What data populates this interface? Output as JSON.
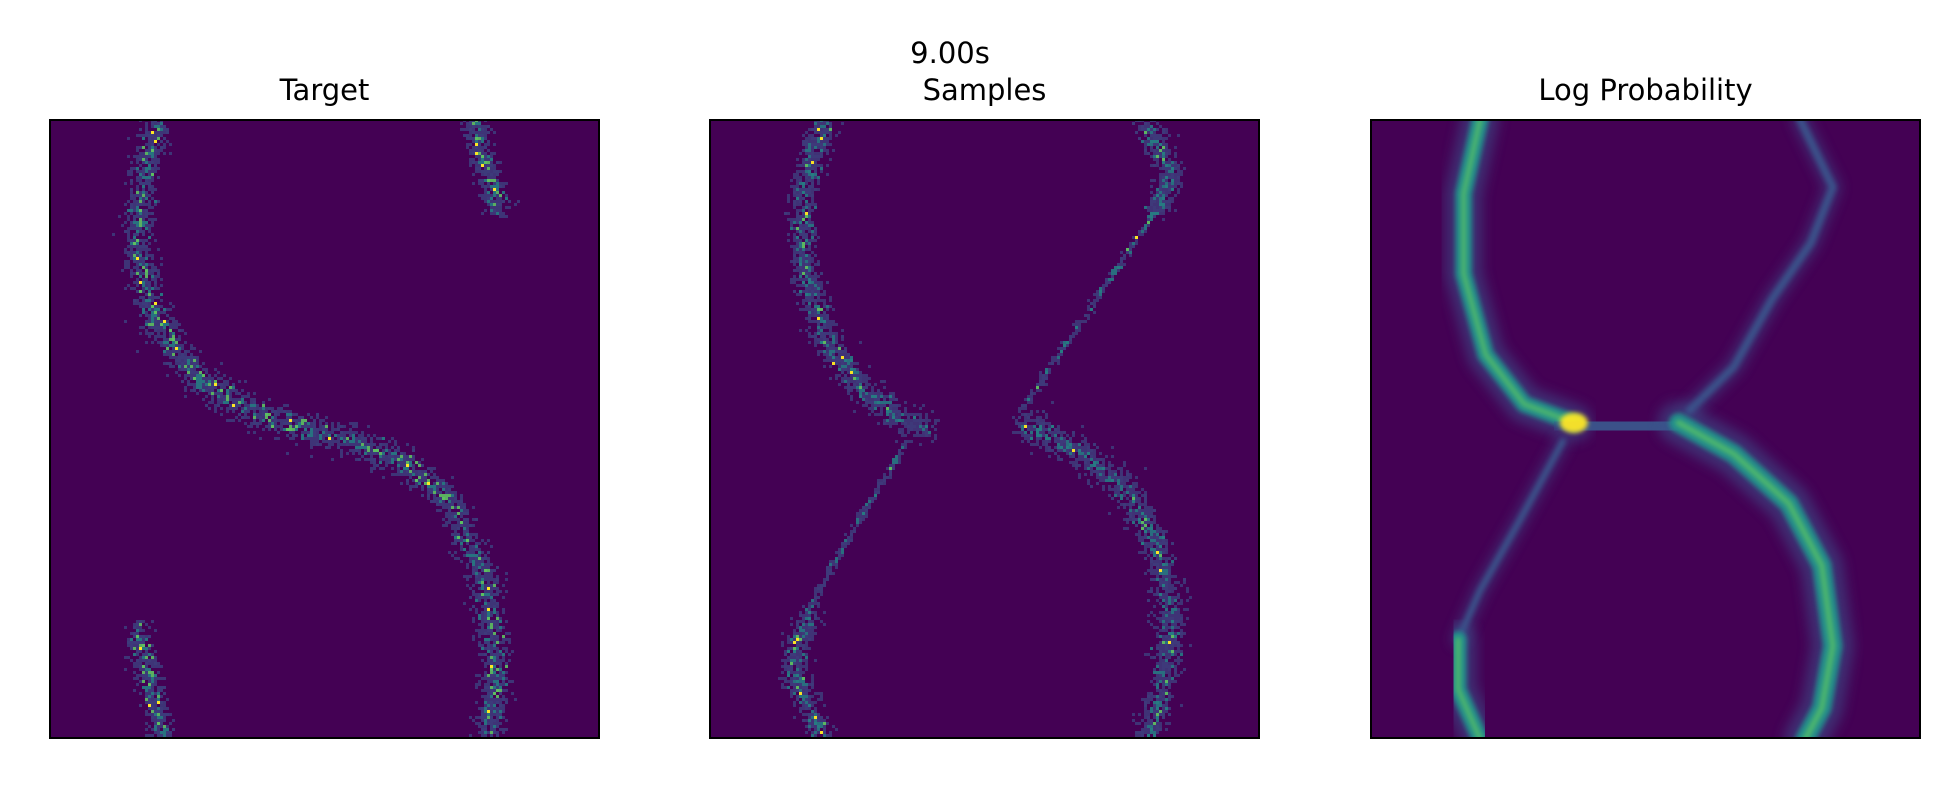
{
  "figure": {
    "suptitle": "9.00s"
  },
  "colormap": {
    "name": "viridis",
    "background": "#440154",
    "low": "#3b528b",
    "mid": "#21918c",
    "high": "#5ec962",
    "peak": "#fde725"
  },
  "chart_data": [
    {
      "type": "heatmap",
      "title": "Target",
      "description": "2D histogram of target samples forming an S-shaped curve",
      "xlim": [
        0,
        1
      ],
      "ylim": [
        0,
        1
      ],
      "grid": false,
      "legend": "none",
      "style": "histogram",
      "curves": [
        {
          "points": [
            [
              0.2,
              1.0
            ],
            [
              0.17,
              0.9
            ],
            [
              0.16,
              0.8
            ],
            [
              0.19,
              0.68
            ],
            [
              0.27,
              0.58
            ],
            [
              0.38,
              0.52
            ],
            [
              0.52,
              0.49
            ],
            [
              0.64,
              0.45
            ],
            [
              0.73,
              0.38
            ],
            [
              0.79,
              0.26
            ],
            [
              0.81,
              0.12
            ],
            [
              0.8,
              0.0
            ]
          ],
          "width": 0.03,
          "intensity": 0.85
        },
        {
          "points": [
            [
              0.77,
              1.0
            ],
            [
              0.79,
              0.93
            ],
            [
              0.82,
              0.85
            ]
          ],
          "width": 0.025,
          "intensity": 0.85
        },
        {
          "points": [
            [
              0.16,
              0.18
            ],
            [
              0.18,
              0.1
            ],
            [
              0.21,
              0.0
            ]
          ],
          "width": 0.025,
          "intensity": 0.85
        }
      ]
    },
    {
      "type": "heatmap",
      "title": "Samples",
      "description": "2D histogram of model samples forming a figure-eight shape",
      "xlim": [
        0,
        1
      ],
      "ylim": [
        0,
        1
      ],
      "grid": false,
      "legend": "none",
      "style": "histogram",
      "curves": [
        {
          "points": [
            [
              0.21,
              1.0
            ],
            [
              0.17,
              0.88
            ],
            [
              0.17,
              0.77
            ],
            [
              0.21,
              0.65
            ],
            [
              0.28,
              0.56
            ],
            [
              0.36,
              0.51
            ],
            [
              0.4,
              0.5
            ]
          ],
          "width": 0.028,
          "intensity": 0.85
        },
        {
          "points": [
            [
              0.79,
              1.0
            ],
            [
              0.84,
              0.91
            ],
            [
              0.81,
              0.85
            ]
          ],
          "width": 0.025,
          "intensity": 0.8
        },
        {
          "points": [
            [
              0.81,
              0.85
            ],
            [
              0.71,
              0.72
            ],
            [
              0.62,
              0.6
            ],
            [
              0.57,
              0.53
            ]
          ],
          "width": 0.008,
          "intensity": 0.35
        },
        {
          "points": [
            [
              0.57,
              0.51
            ],
            [
              0.66,
              0.47
            ],
            [
              0.76,
              0.4
            ],
            [
              0.82,
              0.3
            ],
            [
              0.84,
              0.18
            ],
            [
              0.82,
              0.06
            ],
            [
              0.79,
              0.0
            ]
          ],
          "width": 0.03,
          "intensity": 0.8
        },
        {
          "points": [
            [
              0.36,
              0.48
            ],
            [
              0.27,
              0.35
            ],
            [
              0.2,
              0.24
            ],
            [
              0.18,
              0.2
            ]
          ],
          "width": 0.008,
          "intensity": 0.35
        },
        {
          "points": [
            [
              0.18,
              0.2
            ],
            [
              0.15,
              0.11
            ],
            [
              0.21,
              0.0
            ]
          ],
          "width": 0.025,
          "intensity": 0.9
        }
      ]
    },
    {
      "type": "heatmap",
      "title": "Log Probability",
      "description": "Smooth density of model log probability forming a figure-eight shape",
      "xlim": [
        0,
        1
      ],
      "ylim": [
        0,
        1
      ],
      "grid": false,
      "legend": "none",
      "style": "smooth",
      "curves": [
        {
          "points": [
            [
              0.2,
              1.0
            ],
            [
              0.17,
              0.88
            ],
            [
              0.17,
              0.75
            ],
            [
              0.21,
              0.62
            ],
            [
              0.28,
              0.54
            ],
            [
              0.37,
              0.51
            ]
          ],
          "width": 0.028,
          "intensity": 0.8
        },
        {
          "points": [
            [
              0.37,
              0.51
            ],
            [
              0.46,
              0.5
            ],
            [
              0.55,
              0.51
            ]
          ],
          "width": 0.035,
          "intensity": 0.45
        },
        {
          "points": [
            [
              0.78,
              1.0
            ],
            [
              0.84,
              0.89
            ],
            [
              0.8,
              0.8
            ],
            [
              0.73,
              0.71
            ],
            [
              0.66,
              0.6
            ],
            [
              0.58,
              0.53
            ]
          ],
          "width": 0.012,
          "intensity": 0.45
        },
        {
          "points": [
            [
              0.56,
              0.51
            ],
            [
              0.66,
              0.46
            ],
            [
              0.76,
              0.38
            ],
            [
              0.82,
              0.28
            ],
            [
              0.84,
              0.15
            ],
            [
              0.82,
              0.05
            ],
            [
              0.79,
              0.0
            ]
          ],
          "width": 0.032,
          "intensity": 0.75
        },
        {
          "points": [
            [
              0.35,
              0.48
            ],
            [
              0.27,
              0.35
            ],
            [
              0.2,
              0.24
            ],
            [
              0.16,
              0.16
            ]
          ],
          "width": 0.01,
          "intensity": 0.4
        },
        {
          "points": [
            [
              0.16,
              0.16
            ],
            [
              0.16,
              0.08
            ],
            [
              0.2,
              0.0
            ]
          ],
          "width": 0.028,
          "intensity": 0.8
        }
      ],
      "peaks": [
        [
          0.37,
          0.51
        ]
      ]
    }
  ]
}
